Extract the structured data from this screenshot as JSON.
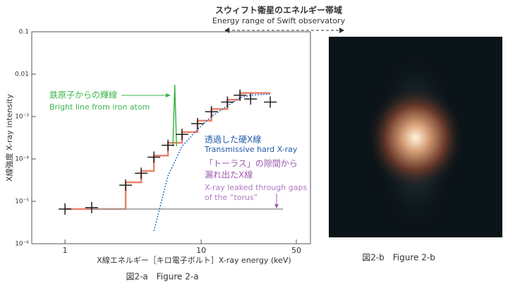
{
  "header": {
    "title": "スウィフト衛星のエネルギー帯域",
    "subtitle": "Energy range of Swift observatory"
  },
  "chart_data": {
    "type": "line",
    "caption": "図2-a　Figure 2-a",
    "x_label": "X線エネルギー［キロ電子ボルト］X-ray energy (keV)",
    "y_label": "X線強度  X-ray intensity",
    "x_scale": "log",
    "y_scale": "log",
    "xlim": [
      0.57,
      63.5
    ],
    "ylim": [
      1e-06,
      0.1
    ],
    "xticks": [
      1,
      10,
      50
    ],
    "yticks": [
      0.1,
      0.01,
      {
        "value": 0.001,
        "label": "10⁻³"
      },
      {
        "value": 0.0001,
        "label": "10⁻⁴"
      },
      {
        "value": 1e-05,
        "label": "10⁻⁵"
      },
      {
        "value": 1e-06,
        "label": "10⁻⁶"
      }
    ],
    "series": [
      {
        "mode": "step",
        "color": "#e8836e",
        "x": [
          1.0,
          1.57,
          2.79,
          3.63,
          4.5,
          5.71,
          7.24,
          9.41,
          11.9,
          15.6,
          19.3,
          23.1,
          32.2
        ],
        "values": [
          6.6e-06,
          6.6e-06,
          2.8e-05,
          5.2e-05,
          0.00012,
          0.00024,
          0.00043,
          0.0008,
          0.0015,
          0.0025,
          0.0036,
          0.0036,
          0.0036
        ]
      },
      {
        "mode": "line",
        "color": "#9a9a9a",
        "x": [
          1.5,
          40
        ],
        "values": [
          6.6e-06,
          6.6e-06
        ]
      },
      {
        "mode": "dotted",
        "color": "#2f6fc4",
        "x": [
          4.5,
          5.71,
          7.24,
          9.41,
          11.9,
          15.6,
          19.3,
          23.1,
          32.2
        ],
        "values": [
          2e-06,
          4e-05,
          0.0002,
          0.0005,
          0.001,
          0.0018,
          0.0028,
          0.0032,
          0.0034
        ]
      },
      {
        "mode": "line",
        "color": "#3db54a",
        "x": [
          6.2,
          6.4,
          6.6
        ],
        "values": [
          0.0002,
          0.0056,
          0.0002
        ]
      },
      {
        "mode": "markers",
        "color": "#222",
        "x": [
          1.0,
          1.57,
          2.79,
          3.63,
          4.5,
          5.71,
          7.24,
          9.41,
          11.9,
          15.6,
          19.3,
          23.1,
          32.2
        ],
        "values": [
          6.6e-06,
          7.1e-06,
          2.4e-05,
          4.6e-05,
          0.00011,
          0.00021,
          0.00038,
          0.00068,
          0.0013,
          0.0022,
          0.0032,
          0.0026,
          0.0022
        ]
      }
    ],
    "annotations": [
      "鉄原子からの輝線",
      "Bright line from iron atom",
      "透過した硬X線",
      "Transmissive hard X-ray",
      "「トーラス」の隙間から",
      "漏れ出たX線",
      "X-ray leaked through gaps",
      "of the “torus”"
    ]
  },
  "figure_b": {
    "caption": "図2-b　Figure 2-b"
  }
}
